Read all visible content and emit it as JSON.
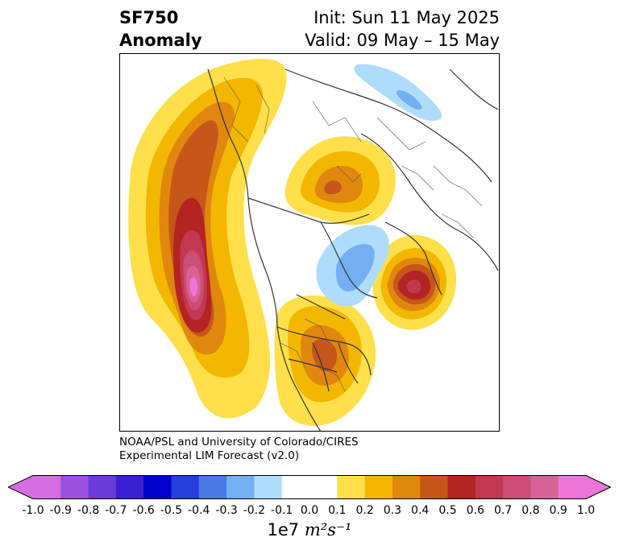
{
  "title": {
    "variable": "SF750",
    "kind": "Anomaly",
    "init": "Init: Sun 11 May 2025",
    "valid": "Valid: 09 May – 15 May"
  },
  "credit": {
    "line1": "NOAA/PSL and University of Colorado/CIRES",
    "line2": "Experimental LIM Forecast (v2.0)"
  },
  "colorbar": {
    "ticks": [
      "-1.0",
      "-0.9",
      "-0.8",
      "-0.7",
      "-0.6",
      "-0.5",
      "-0.4",
      "-0.3",
      "-0.2",
      "-0.1",
      "0.0",
      "0.1",
      "0.2",
      "0.3",
      "0.4",
      "0.5",
      "0.6",
      "0.7",
      "0.8",
      "0.9",
      "1.0"
    ],
    "colors": [
      "#d56ee3",
      "#9b50e0",
      "#6a3bd8",
      "#3a1ed2",
      "#0000cd",
      "#253fd8",
      "#4c78e6",
      "#74aff2",
      "#aedcfb",
      "#ffffff",
      "#ffffff",
      "#ffe04a",
      "#f3b700",
      "#e0870e",
      "#c6561a",
      "#b32422",
      "#c23851",
      "#cc4d76",
      "#d86296",
      "#ec76d8"
    ],
    "extend_low": "#d56ee3",
    "extend_high": "#ec76d8",
    "units_prefix": "1e7 ",
    "units_math": "m²s⁻¹"
  }
}
